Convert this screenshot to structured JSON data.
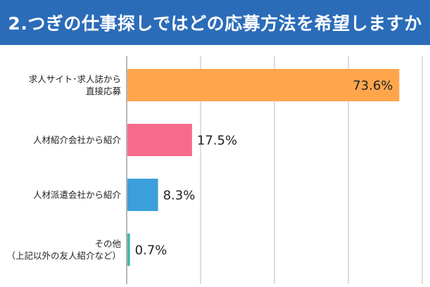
{
  "title": "2.つぎの仕事探しではどの応募方法を希望しますか",
  "colors": {
    "title_bg": "#2B6CB8",
    "grid": "#BDBDBD",
    "axis": "#9E9E9E"
  },
  "chart_data": {
    "type": "bar",
    "orientation": "horizontal",
    "title": "2.つぎの仕事探しではどの応募方法を希望しますか",
    "xlim": [
      0,
      80
    ],
    "grid": true,
    "categories": [
      [
        "求人サイト･求人誌から",
        "直接応募"
      ],
      [
        "人材紹介会社から紹介"
      ],
      [
        "人材派遣会社から紹介"
      ],
      [
        "その他",
        "（上記以外の友人紹介など）"
      ]
    ],
    "values": [
      73.6,
      17.5,
      8.3,
      0.7
    ],
    "value_labels": [
      "73.6%",
      "17.5%",
      "8.3%",
      "0.7%"
    ],
    "colors": [
      "#FFA64D",
      "#F76B8A",
      "#3B9FDB",
      "#3CB8B0"
    ]
  }
}
